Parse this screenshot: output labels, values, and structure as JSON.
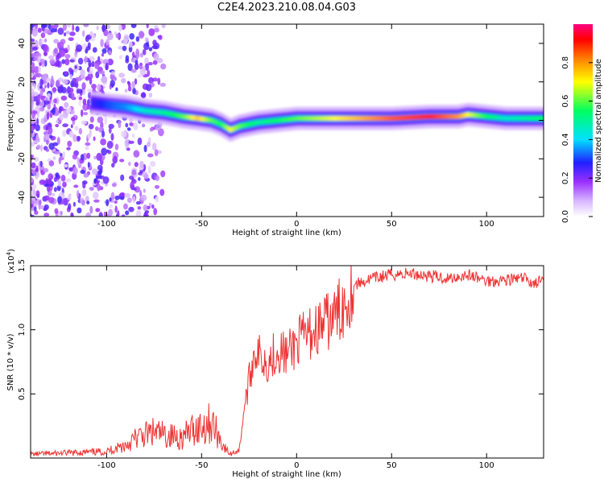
{
  "title": "C2E4.2023.210.08.04.G03",
  "chart_data": [
    {
      "type": "heatmap",
      "xlabel": "Height of straight line (km)",
      "ylabel": "Frequency (Hz)",
      "xlim": [
        -140,
        130
      ],
      "ylim": [
        -50,
        50
      ],
      "xticks": [
        -100,
        -50,
        0,
        50,
        100
      ],
      "yticks": [
        -40,
        -20,
        0,
        20,
        40
      ],
      "colorbar": {
        "label": "Normalized spectral amplitude",
        "range": [
          0,
          1
        ],
        "ticks": [
          0.0,
          0.2,
          0.4,
          0.6,
          0.8
        ],
        "colors": [
          "#ffffff",
          "#d8b8ff",
          "#9b30ff",
          "#2020ff",
          "#00e0ff",
          "#00ff60",
          "#ffff00",
          "#ff8000",
          "#ff0000",
          "#ff0080"
        ]
      },
      "ridge": {
        "x": [
          -108,
          -100,
          -90,
          -80,
          -70,
          -60,
          -52,
          -45,
          -40,
          -35,
          -30,
          -25,
          -20,
          -10,
          0,
          10,
          30,
          50,
          70,
          85,
          90,
          100,
          110,
          120,
          130
        ],
        "freq": [
          9,
          8,
          7,
          5,
          4,
          2,
          1,
          0,
          -2,
          -5,
          -3,
          -2,
          -1,
          0,
          1,
          1,
          1,
          1,
          2,
          2,
          3,
          2,
          1,
          1,
          1
        ],
        "amplitude": [
          0.25,
          0.3,
          0.35,
          0.45,
          0.5,
          0.6,
          0.75,
          0.6,
          0.55,
          0.7,
          0.6,
          0.55,
          0.5,
          0.55,
          0.6,
          0.65,
          0.75,
          0.85,
          0.9,
          0.8,
          0.7,
          0.55,
          0.45,
          0.5,
          0.55
        ]
      }
    },
    {
      "type": "line",
      "xlabel": "Height of straight line (km)",
      "ylabel": "SNR (10 * v/v)",
      "scale_label": "(x10",
      "scale_exp": "4",
      "xlim": [
        -140,
        130
      ],
      "ylim": [
        0,
        15000
      ],
      "xticks": [
        -100,
        -50,
        0,
        50,
        100
      ],
      "yticks": [
        0.5,
        1.0,
        1.5
      ],
      "color": "#ee3333",
      "series": [
        {
          "x": [
            -140,
            -120,
            -100,
            -95,
            -90,
            -85,
            -80,
            -75,
            -70,
            -65,
            -60,
            -55,
            -50,
            -45,
            -42,
            -38,
            -35,
            -30,
            -28,
            -25,
            -22,
            -20,
            -15,
            -10,
            -5,
            0,
            5,
            10,
            15,
            20,
            25,
            30,
            40,
            50,
            60,
            70,
            80,
            90,
            100,
            110,
            120,
            125,
            130
          ],
          "y": [
            300,
            400,
            500,
            800,
            1000,
            1500,
            1800,
            2000,
            1800,
            1700,
            1600,
            2200,
            2500,
            2800,
            2000,
            800,
            300,
            700,
            3500,
            6000,
            8500,
            8000,
            7500,
            8500,
            8000,
            9000,
            9500,
            10000,
            10500,
            11000,
            12000,
            13500,
            14000,
            14300,
            14400,
            14200,
            14000,
            14300,
            13800,
            13900,
            14000,
            13600,
            13900
          ]
        }
      ]
    }
  ]
}
